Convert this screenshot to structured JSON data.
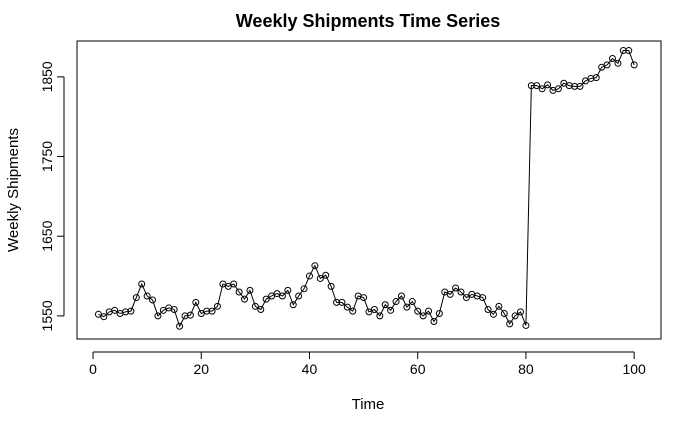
{
  "chart_data": {
    "type": "line",
    "title": "Weekly Shipments Time Series",
    "xlabel": "Time",
    "ylabel": "Weekly Shipments",
    "xlim": [
      -2.96,
      104.96
    ],
    "ylim": [
      1521,
      1895
    ],
    "xticks": [
      0,
      20,
      40,
      60,
      80,
      100
    ],
    "yticks": [
      1550,
      1650,
      1750,
      1850
    ],
    "grid": false,
    "point_style": "open-circle",
    "series": [
      {
        "x": [
          1,
          2,
          3,
          4,
          5,
          6,
          7,
          8,
          9,
          10,
          11,
          12,
          13,
          14,
          15,
          16,
          17,
          18,
          19,
          20,
          21,
          22,
          23,
          24,
          25,
          26,
          27,
          28,
          29,
          30,
          31,
          32,
          33,
          34,
          35,
          36,
          37,
          38,
          39,
          40,
          41,
          42,
          43,
          44,
          45,
          46,
          47,
          48,
          49,
          50,
          51,
          52,
          53,
          54,
          55,
          56,
          57,
          58,
          59,
          60,
          61,
          62,
          63,
          64,
          65,
          66,
          67,
          68,
          69,
          70,
          71,
          72,
          73,
          74,
          75,
          76,
          77,
          78,
          79,
          80,
          81,
          82,
          83,
          84,
          85,
          86,
          87,
          88,
          89,
          90,
          91,
          92,
          93,
          94,
          95,
          96,
          97,
          98,
          99,
          100
        ],
        "values": [
          1552,
          1549,
          1555,
          1557,
          1553,
          1555,
          1556,
          1573,
          1590,
          1575,
          1570,
          1550,
          1557,
          1560,
          1558,
          1537,
          1550,
          1551,
          1567,
          1553,
          1556,
          1556,
          1562,
          1590,
          1587,
          1590,
          1580,
          1571,
          1582,
          1562,
          1558,
          1571,
          1575,
          1578,
          1575,
          1582,
          1564,
          1575,
          1584,
          1600,
          1613,
          1597,
          1601,
          1587,
          1567,
          1567,
          1561,
          1556,
          1575,
          1573,
          1555,
          1558,
          1550,
          1564,
          1557,
          1568,
          1575,
          1561,
          1568,
          1556,
          1550,
          1556,
          1543,
          1553,
          1580,
          1577,
          1585,
          1580,
          1573,
          1577,
          1575,
          1573,
          1558,
          1552,
          1562,
          1553,
          1540,
          1550,
          1555,
          1538,
          1839,
          1839,
          1835,
          1840,
          1833,
          1835,
          1842,
          1839,
          1838,
          1838,
          1845,
          1848,
          1849,
          1862,
          1865,
          1873,
          1867,
          1883,
          1883,
          1865
        ]
      }
    ]
  }
}
